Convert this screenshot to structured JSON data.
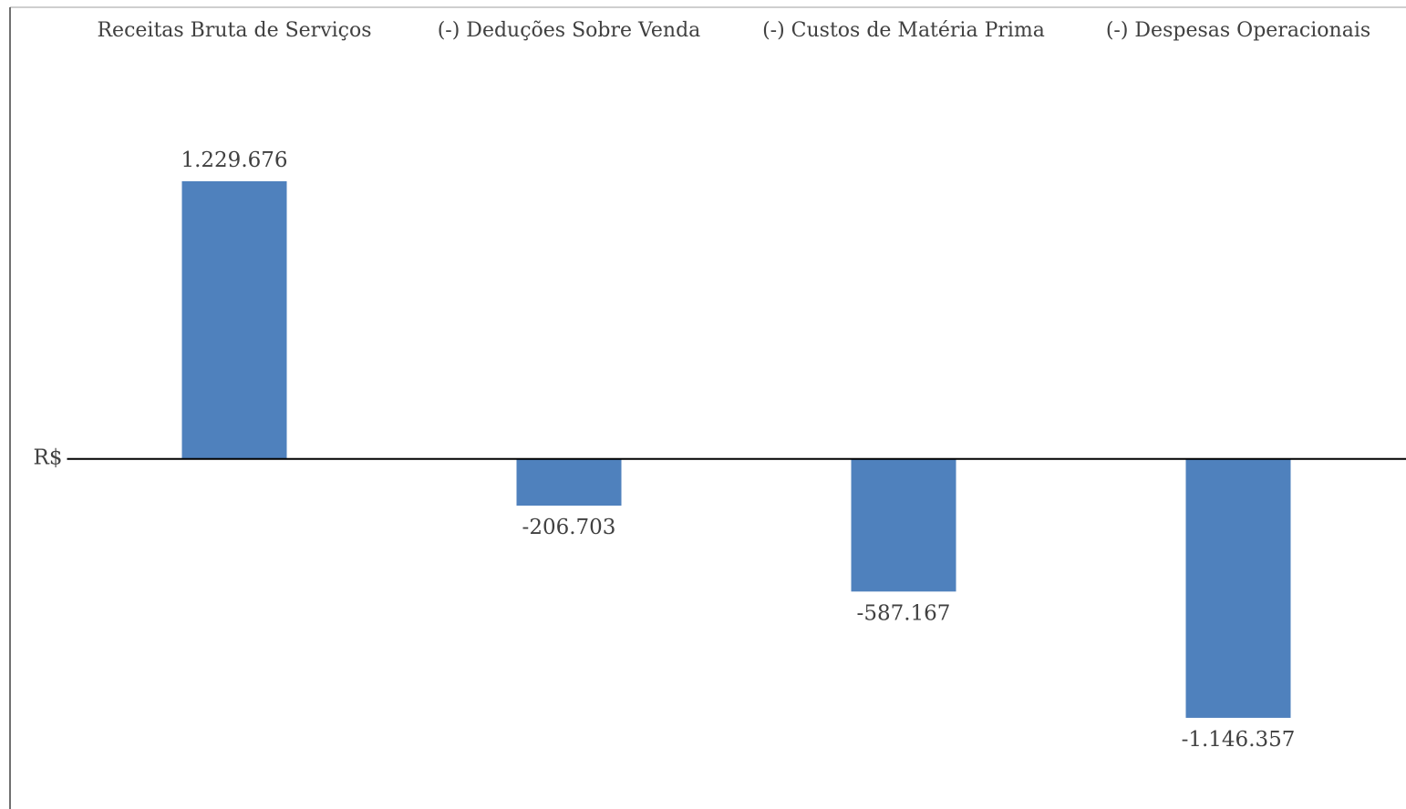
{
  "chart_data": {
    "type": "bar",
    "categories": [
      "Receitas Bruta de Serviços",
      "(-) Deduções Sobre Venda",
      "(-) Custos de Matéria Prima",
      "(-) Despesas Operacionais"
    ],
    "values": [
      1229676,
      -206703,
      -587167,
      -1146357
    ],
    "value_labels": [
      "1.229.676",
      "-206.703",
      "-587.167",
      "-1.146.357"
    ],
    "color": "#4f81bd",
    "ylim": [
      -1550000,
      1790000
    ],
    "yticks": [
      {
        "value": 0,
        "label": "R$"
      }
    ],
    "grid": false
  }
}
